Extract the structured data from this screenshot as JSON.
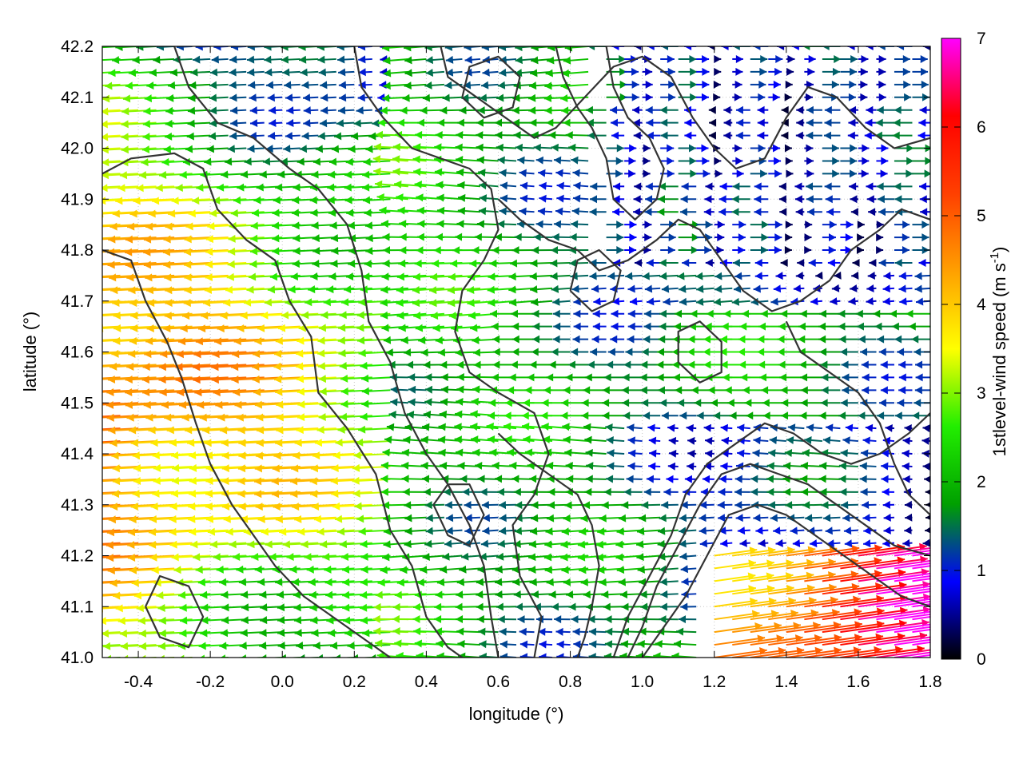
{
  "chart_data": {
    "type": "vector-field",
    "xlabel": "longitude (°)",
    "ylabel": "latitude (°)",
    "xlim": [
      -0.5,
      1.8
    ],
    "ylim": [
      41.0,
      42.2
    ],
    "xticks": [
      "-0.4",
      "-0.2",
      "0.0",
      "0.2",
      "0.4",
      "0.6",
      "0.8",
      "1.0",
      "1.2",
      "1.4",
      "1.6",
      "1.8"
    ],
    "xtick_values": [
      -0.4,
      -0.2,
      0.0,
      0.2,
      0.4,
      0.6,
      0.8,
      1.0,
      1.2,
      1.4,
      1.6,
      1.8
    ],
    "yticks": [
      "41.0",
      "41.1",
      "41.2",
      "41.3",
      "41.4",
      "41.5",
      "41.6",
      "41.7",
      "41.8",
      "41.9",
      "42.0",
      "42.1",
      "42.2"
    ],
    "ytick_values": [
      41.0,
      41.1,
      41.2,
      41.3,
      41.4,
      41.5,
      41.6,
      41.7,
      41.8,
      41.9,
      42.0,
      42.1,
      42.2
    ],
    "grid": true,
    "colorbar": {
      "label_main": "1stlevel-wind speed (m s",
      "label_sup": "-1",
      "label_end": ")",
      "range": [
        0,
        7
      ],
      "ticks": [
        "0",
        "1",
        "2",
        "3",
        "4",
        "5",
        "6",
        "7"
      ],
      "tick_values": [
        0,
        1,
        2,
        3,
        4,
        5,
        6,
        7
      ],
      "colormap": [
        "#000000",
        "#0000ff",
        "#00a000",
        "#22ee00",
        "#ffff00",
        "#ffa000",
        "#ff4000",
        "#ff0000",
        "#ff00ff"
      ]
    },
    "contours": [
      [
        [
          -0.5,
          41.95
        ],
        [
          -0.42,
          41.98
        ],
        [
          -0.3,
          41.99
        ],
        [
          -0.22,
          41.96
        ],
        [
          -0.18,
          41.88
        ],
        [
          -0.1,
          41.82
        ],
        [
          -0.02,
          41.78
        ],
        [
          0.02,
          41.7
        ],
        [
          0.08,
          41.63
        ],
        [
          0.1,
          41.52
        ],
        [
          0.18,
          41.45
        ],
        [
          0.26,
          41.36
        ],
        [
          0.3,
          41.25
        ],
        [
          0.36,
          41.18
        ],
        [
          0.4,
          41.08
        ],
        [
          0.46,
          41.02
        ],
        [
          0.5,
          41.0
        ]
      ],
      [
        [
          -0.5,
          41.8
        ],
        [
          -0.42,
          41.78
        ],
        [
          -0.38,
          41.7
        ],
        [
          -0.32,
          41.62
        ],
        [
          -0.28,
          41.55
        ],
        [
          -0.24,
          41.46
        ],
        [
          -0.2,
          41.38
        ],
        [
          -0.14,
          41.3
        ],
        [
          -0.08,
          41.24
        ],
        [
          -0.02,
          41.18
        ],
        [
          0.06,
          41.12
        ],
        [
          0.14,
          41.08
        ],
        [
          0.22,
          41.04
        ],
        [
          0.3,
          41.0
        ]
      ],
      [
        [
          -0.3,
          42.2
        ],
        [
          -0.26,
          42.12
        ],
        [
          -0.18,
          42.05
        ],
        [
          -0.08,
          42.02
        ],
        [
          0.02,
          41.96
        ],
        [
          0.1,
          41.92
        ],
        [
          0.18,
          41.85
        ],
        [
          0.22,
          41.76
        ],
        [
          0.24,
          41.66
        ],
        [
          0.3,
          41.58
        ],
        [
          0.34,
          41.48
        ],
        [
          0.4,
          41.4
        ],
        [
          0.46,
          41.34
        ],
        [
          0.52,
          41.26
        ],
        [
          0.56,
          41.18
        ],
        [
          0.58,
          41.08
        ],
        [
          0.6,
          41.0
        ]
      ],
      [
        [
          0.2,
          42.2
        ],
        [
          0.22,
          42.12
        ],
        [
          0.28,
          42.06
        ],
        [
          0.36,
          42.0
        ],
        [
          0.44,
          41.98
        ],
        [
          0.52,
          41.96
        ],
        [
          0.58,
          41.92
        ],
        [
          0.6,
          41.84
        ],
        [
          0.56,
          41.78
        ],
        [
          0.5,
          41.72
        ],
        [
          0.48,
          41.64
        ],
        [
          0.52,
          41.56
        ],
        [
          0.6,
          41.52
        ],
        [
          0.7,
          41.48
        ],
        [
          0.74,
          41.4
        ],
        [
          0.7,
          41.32
        ],
        [
          0.64,
          41.26
        ],
        [
          0.66,
          41.16
        ],
        [
          0.72,
          41.08
        ],
        [
          0.7,
          41.0
        ]
      ],
      [
        [
          0.44,
          42.2
        ],
        [
          0.46,
          42.14
        ],
        [
          0.54,
          42.1
        ],
        [
          0.62,
          42.06
        ],
        [
          0.7,
          42.02
        ],
        [
          0.76,
          42.04
        ],
        [
          0.84,
          42.1
        ],
        [
          0.92,
          42.16
        ],
        [
          1.0,
          42.18
        ],
        [
          1.08,
          42.14
        ],
        [
          1.14,
          42.06
        ],
        [
          1.2,
          42.0
        ],
        [
          1.26,
          41.96
        ],
        [
          1.34,
          41.98
        ],
        [
          1.4,
          42.06
        ],
        [
          1.46,
          42.12
        ],
        [
          1.54,
          42.1
        ],
        [
          1.62,
          42.04
        ],
        [
          1.7,
          42.0
        ],
        [
          1.8,
          42.02
        ]
      ],
      [
        [
          0.6,
          41.9
        ],
        [
          0.66,
          41.86
        ],
        [
          0.74,
          41.82
        ],
        [
          0.82,
          41.8
        ],
        [
          0.88,
          41.76
        ],
        [
          0.96,
          41.78
        ],
        [
          1.04,
          41.82
        ],
        [
          1.1,
          41.86
        ],
        [
          1.16,
          41.84
        ],
        [
          1.22,
          41.78
        ],
        [
          1.28,
          41.72
        ],
        [
          1.36,
          41.68
        ],
        [
          1.44,
          41.7
        ],
        [
          1.52,
          41.74
        ],
        [
          1.58,
          41.8
        ],
        [
          1.66,
          41.84
        ],
        [
          1.72,
          41.88
        ],
        [
          1.8,
          41.86
        ]
      ],
      [
        [
          0.9,
          42.2
        ],
        [
          0.92,
          42.12
        ],
        [
          0.96,
          42.06
        ],
        [
          1.02,
          42.02
        ],
        [
          1.06,
          41.96
        ],
        [
          1.04,
          41.9
        ],
        [
          0.98,
          41.86
        ],
        [
          0.92,
          41.9
        ],
        [
          0.9,
          41.98
        ],
        [
          0.86,
          42.04
        ],
        [
          0.82,
          42.08
        ],
        [
          0.78,
          42.14
        ],
        [
          0.76,
          42.2
        ]
      ],
      [
        [
          1.4,
          41.66
        ],
        [
          1.44,
          41.6
        ],
        [
          1.52,
          41.56
        ],
        [
          1.6,
          41.52
        ],
        [
          1.66,
          41.46
        ],
        [
          1.7,
          41.38
        ],
        [
          1.74,
          41.32
        ],
        [
          1.8,
          41.28
        ]
      ],
      [
        [
          0.6,
          41.44
        ],
        [
          0.66,
          41.4
        ],
        [
          0.74,
          41.36
        ],
        [
          0.82,
          41.32
        ],
        [
          0.86,
          41.26
        ],
        [
          0.88,
          41.18
        ],
        [
          0.86,
          41.1
        ],
        [
          0.84,
          41.04
        ],
        [
          0.82,
          41.0
        ]
      ],
      [
        [
          0.92,
          41.0
        ],
        [
          0.96,
          41.08
        ],
        [
          1.02,
          41.16
        ],
        [
          1.08,
          41.24
        ],
        [
          1.12,
          41.32
        ],
        [
          1.18,
          41.38
        ],
        [
          1.26,
          41.42
        ],
        [
          1.34,
          41.46
        ],
        [
          1.42,
          41.44
        ],
        [
          1.5,
          41.4
        ],
        [
          1.58,
          41.38
        ],
        [
          1.66,
          41.4
        ],
        [
          1.74,
          41.44
        ],
        [
          1.8,
          41.48
        ]
      ],
      [
        [
          0.96,
          41.0
        ],
        [
          1.0,
          41.06
        ],
        [
          1.04,
          41.14
        ],
        [
          1.1,
          41.22
        ],
        [
          1.16,
          41.3
        ],
        [
          1.22,
          41.36
        ],
        [
          1.3,
          41.38
        ],
        [
          1.38,
          41.36
        ],
        [
          1.46,
          41.34
        ],
        [
          1.54,
          41.3
        ],
        [
          1.62,
          41.26
        ],
        [
          1.7,
          41.22
        ],
        [
          1.8,
          41.2
        ]
      ],
      [
        [
          1.0,
          41.0
        ],
        [
          1.06,
          41.06
        ],
        [
          1.12,
          41.12
        ],
        [
          1.18,
          41.2
        ],
        [
          1.24,
          41.28
        ],
        [
          1.32,
          41.3
        ],
        [
          1.4,
          41.28
        ],
        [
          1.48,
          41.24
        ],
        [
          1.56,
          41.2
        ],
        [
          1.64,
          41.16
        ],
        [
          1.72,
          41.12
        ],
        [
          1.8,
          41.1
        ]
      ],
      [
        [
          0.42,
          41.3
        ],
        [
          0.46,
          41.24
        ],
        [
          0.52,
          41.22
        ],
        [
          0.56,
          41.28
        ],
        [
          0.52,
          41.34
        ],
        [
          0.46,
          41.34
        ],
        [
          0.42,
          41.3
        ]
      ],
      [
        [
          0.8,
          41.72
        ],
        [
          0.86,
          41.68
        ],
        [
          0.92,
          41.7
        ],
        [
          0.94,
          41.76
        ],
        [
          0.88,
          41.8
        ],
        [
          0.82,
          41.78
        ],
        [
          0.8,
          41.72
        ]
      ],
      [
        [
          0.5,
          42.1
        ],
        [
          0.56,
          42.06
        ],
        [
          0.64,
          42.08
        ],
        [
          0.66,
          42.14
        ],
        [
          0.6,
          42.18
        ],
        [
          0.52,
          42.16
        ],
        [
          0.5,
          42.1
        ]
      ],
      [
        [
          -0.38,
          41.1
        ],
        [
          -0.34,
          41.04
        ],
        [
          -0.26,
          41.02
        ],
        [
          -0.22,
          41.08
        ],
        [
          -0.26,
          41.14
        ],
        [
          -0.34,
          41.16
        ],
        [
          -0.38,
          41.1
        ]
      ],
      [
        [
          1.1,
          41.58
        ],
        [
          1.16,
          41.54
        ],
        [
          1.22,
          41.56
        ],
        [
          1.22,
          41.62
        ],
        [
          1.16,
          41.66
        ],
        [
          1.1,
          41.64
        ],
        [
          1.1,
          41.58
        ]
      ]
    ]
  }
}
